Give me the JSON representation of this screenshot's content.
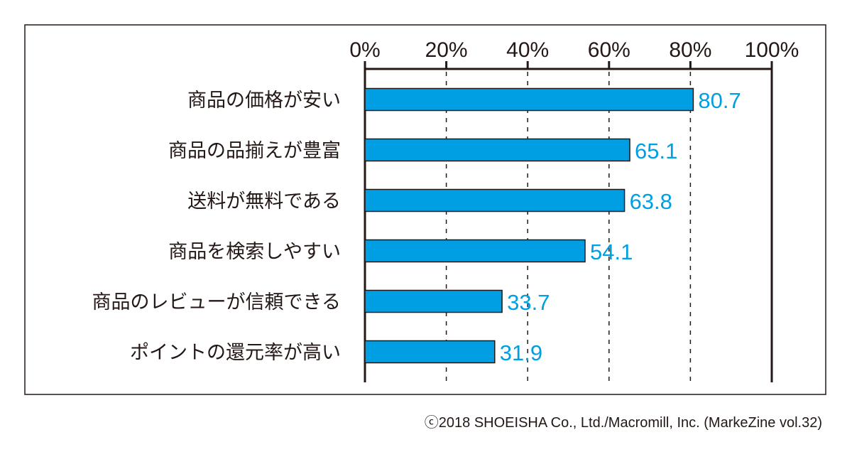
{
  "chart_data": {
    "type": "bar",
    "orientation": "horizontal",
    "categories": [
      "商品の価格が安い",
      "商品の品揃えが豊富",
      "送料が無料である",
      "商品を検索しやすい",
      "商品のレビューが信頼できる",
      "ポイントの還元率が高い"
    ],
    "values": [
      80.7,
      65.1,
      63.8,
      54.1,
      33.7,
      31.9
    ],
    "value_labels": [
      "80.7",
      "65.1",
      "63.8",
      "54.1",
      "33.7",
      "31.9"
    ],
    "xticks": [
      "0%",
      "20%",
      "40%",
      "60%",
      "80%",
      "100%"
    ],
    "xtick_values": [
      0,
      20,
      40,
      60,
      80,
      100
    ],
    "xlim": [
      0,
      100
    ],
    "grid": "dashed vertical",
    "bar_color": "#009fe3",
    "label_color": "#009fe3",
    "title": "",
    "xlabel": "",
    "ylabel": ""
  },
  "caption": "ⓒ2018 SHOEISHA Co., Ltd./Macromill, Inc. (MarkeZine vol.32)"
}
